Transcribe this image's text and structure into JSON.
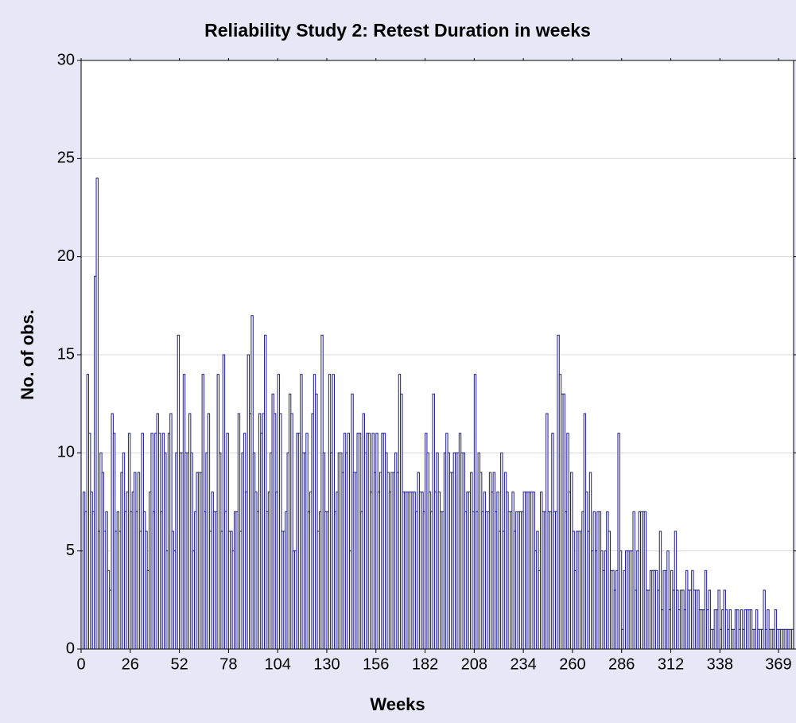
{
  "chart_data": {
    "type": "histogram",
    "title": "Reliability Study 2: Retest Duration in weeks",
    "x_label": "Weeks",
    "y_label": "No. of obs.",
    "color": "#1e1e82",
    "grid": true,
    "xlim": [
      0,
      377
    ],
    "ylim": [
      0,
      30
    ],
    "xticks": [
      0,
      26,
      52,
      78,
      104,
      130,
      156,
      182,
      208,
      234,
      260,
      286,
      312,
      338,
      369
    ],
    "yticks": [
      0,
      5,
      10,
      15,
      20,
      25,
      30
    ],
    "bins": [
      0,
      1,
      2,
      3,
      4,
      5,
      6,
      7,
      8,
      9,
      10,
      11,
      12,
      13,
      14,
      15,
      16,
      17,
      18,
      19,
      20,
      21,
      22,
      23,
      24,
      25,
      26,
      27,
      28,
      29,
      30,
      31,
      32,
      33,
      34,
      35,
      36,
      37,
      38,
      39,
      40,
      41,
      42,
      43,
      44,
      45,
      46,
      47,
      48,
      49,
      50,
      51,
      52,
      53,
      54,
      55,
      56,
      57,
      58,
      59,
      60,
      61,
      62,
      63,
      64,
      65,
      66,
      67,
      68,
      69,
      70,
      71,
      72,
      73,
      74,
      75,
      76,
      77,
      78,
      79,
      80,
      81,
      82,
      83,
      84,
      85,
      86,
      87,
      88,
      89,
      90,
      91,
      92,
      93,
      94,
      95,
      96,
      97,
      98,
      99,
      100,
      101,
      102,
      103,
      104,
      105,
      106,
      107,
      108,
      109,
      110,
      111,
      112,
      113,
      114,
      115,
      116,
      117,
      118,
      119,
      120,
      121,
      122,
      123,
      124,
      125,
      126,
      127,
      128,
      129,
      130,
      131,
      132,
      133,
      134,
      135,
      136,
      137,
      138,
      139,
      140,
      141,
      142,
      143,
      144,
      145,
      146,
      147,
      148,
      149,
      150,
      151,
      152,
      153,
      154,
      155,
      156,
      157,
      158,
      159,
      160,
      161,
      162,
      163,
      164,
      165,
      166,
      167,
      168,
      169,
      170,
      171,
      172,
      173,
      174,
      175,
      176,
      177,
      178,
      179,
      180,
      181,
      182,
      183,
      184,
      185,
      186,
      187,
      188,
      189,
      190,
      191,
      192,
      193,
      194,
      195,
      196,
      197,
      198,
      199,
      200,
      201,
      202,
      203,
      204,
      205,
      206,
      207,
      208,
      209,
      210,
      211,
      212,
      213,
      214,
      215,
      216,
      217,
      218,
      219,
      220,
      221,
      222,
      223,
      224,
      225,
      226,
      227,
      228,
      229,
      230,
      231,
      232,
      233,
      234,
      235,
      236,
      237,
      238,
      239,
      240,
      241,
      242,
      243,
      244,
      245,
      246,
      247,
      248,
      249,
      250,
      251,
      252,
      253,
      254,
      255,
      256,
      257,
      258,
      259,
      260,
      261,
      262,
      263,
      264,
      265,
      266,
      267,
      268,
      269,
      270,
      271,
      272,
      273,
      274,
      275,
      276,
      277,
      278,
      279,
      280,
      281,
      282,
      283,
      284,
      285,
      286,
      287,
      288,
      289,
      290,
      291,
      292,
      293,
      294,
      295,
      296,
      297,
      298,
      299,
      300,
      301,
      302,
      303,
      304,
      305,
      306,
      307,
      308,
      309,
      310,
      311,
      312,
      313,
      314,
      315,
      316,
      317,
      318,
      319,
      320,
      321,
      322,
      323,
      324,
      325,
      326,
      327,
      328,
      329,
      330,
      331,
      332,
      333,
      334,
      335,
      336,
      337,
      338,
      339,
      340,
      341,
      342,
      343,
      344,
      345,
      346,
      347,
      348,
      349,
      350,
      351,
      352,
      353,
      354,
      355,
      356,
      357,
      358,
      359,
      360,
      361,
      362,
      363,
      364,
      365,
      366,
      367,
      368,
      369,
      370,
      371,
      372,
      373,
      374,
      375,
      376,
      377
    ],
    "values": [
      5,
      8,
      7,
      14,
      11,
      8,
      7,
      19,
      24,
      6,
      10,
      9,
      6,
      7,
      4,
      3,
      12,
      11,
      6,
      7,
      6,
      9,
      10,
      7,
      8,
      11,
      7,
      8,
      9,
      7,
      9,
      6,
      11,
      7,
      6,
      4,
      8,
      11,
      7,
      11,
      12,
      11,
      7,
      11,
      10,
      5,
      11,
      12,
      6,
      5,
      10,
      16,
      10,
      10,
      14,
      10,
      10,
      12,
      10,
      5,
      7,
      9,
      9,
      9,
      14,
      7,
      10,
      12,
      6,
      8,
      7,
      7,
      14,
      10,
      6,
      15,
      7,
      11,
      6,
      6,
      5,
      7,
      7,
      12,
      6,
      10,
      11,
      8,
      15,
      12,
      17,
      10,
      8,
      7,
      12,
      11,
      12,
      16,
      7,
      8,
      10,
      13,
      12,
      8,
      14,
      12,
      6,
      6,
      7,
      10,
      13,
      12,
      5,
      5,
      11,
      11,
      14,
      10,
      10,
      11,
      7,
      8,
      12,
      14,
      13,
      6,
      7,
      16,
      10,
      7,
      7,
      14,
      10,
      14,
      7,
      8,
      10,
      10,
      9,
      11,
      10,
      11,
      5,
      13,
      9,
      9,
      11,
      11,
      7,
      12,
      10,
      11,
      11,
      8,
      11,
      9,
      11,
      8,
      9,
      11,
      11,
      10,
      9,
      8,
      9,
      9,
      10,
      9,
      14,
      13,
      8,
      8,
      8,
      8,
      8,
      8,
      8,
      7,
      9,
      8,
      8,
      7,
      11,
      10,
      8,
      7,
      13,
      8,
      10,
      8,
      7,
      7,
      10,
      11,
      10,
      9,
      9,
      10,
      10,
      10,
      11,
      10,
      10,
      7,
      8,
      8,
      9,
      7,
      14,
      7,
      10,
      9,
      7,
      8,
      7,
      7,
      9,
      8,
      9,
      7,
      8,
      6,
      10,
      6,
      9,
      8,
      7,
      7,
      8,
      6,
      7,
      7,
      7,
      7,
      8,
      8,
      8,
      8,
      8,
      8,
      5,
      6,
      4,
      8,
      7,
      7,
      12,
      7,
      7,
      11,
      7,
      7,
      16,
      14,
      13,
      13,
      7,
      11,
      8,
      9,
      6,
      4,
      6,
      6,
      6,
      7,
      12,
      8,
      6,
      9,
      5,
      7,
      5,
      7,
      7,
      5,
      4,
      5,
      7,
      6,
      4,
      4,
      3,
      4,
      11,
      5,
      1,
      4,
      5,
      5,
      5,
      5,
      7,
      3,
      5,
      7,
      7,
      7,
      7,
      3,
      3,
      4,
      4,
      4,
      4,
      3,
      6,
      2,
      4,
      4,
      5,
      2,
      4,
      3,
      6,
      3,
      2,
      3,
      3,
      2,
      4,
      3,
      3,
      4,
      3,
      3,
      3,
      2,
      2,
      2,
      4,
      2,
      3,
      1,
      1,
      2,
      2,
      3,
      1,
      2,
      3,
      2,
      1,
      2,
      1,
      1,
      2,
      2,
      1,
      2,
      1,
      2,
      2,
      2,
      2,
      1,
      1,
      2,
      1,
      1,
      1,
      3,
      1,
      2,
      1,
      1,
      1,
      2,
      1,
      1,
      1,
      1,
      1,
      1,
      1,
      1,
      1
    ]
  }
}
